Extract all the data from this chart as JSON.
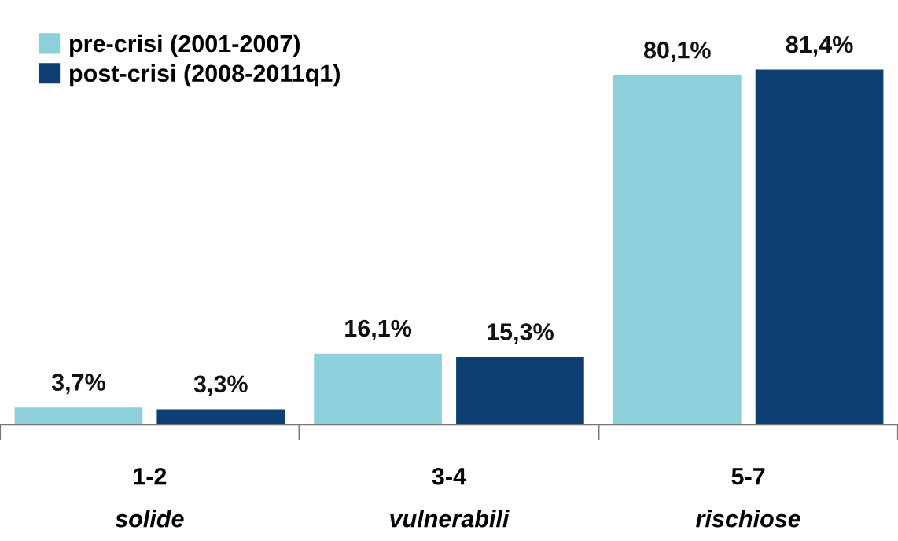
{
  "chart_data": {
    "type": "bar",
    "categories": [
      "1-2\nsolide",
      "3-4\nvulnerabili",
      "5-7\nrischiose"
    ],
    "series": [
      {
        "name": "pre-crisi (2001-2007)",
        "color": "#8dd0dc",
        "values": [
          3.7,
          16.1,
          80.1
        ],
        "value_labels": [
          "3,7%",
          "16,1%",
          "80,1%"
        ]
      },
      {
        "name": "post-crisi (2008-2011q1)",
        "color": "#0d3f72",
        "values": [
          3.3,
          15.3,
          81.4
        ],
        "value_labels": [
          "3,3%",
          "15,3%",
          "81,4%"
        ]
      }
    ],
    "legend": "top left",
    "grid": false
  }
}
